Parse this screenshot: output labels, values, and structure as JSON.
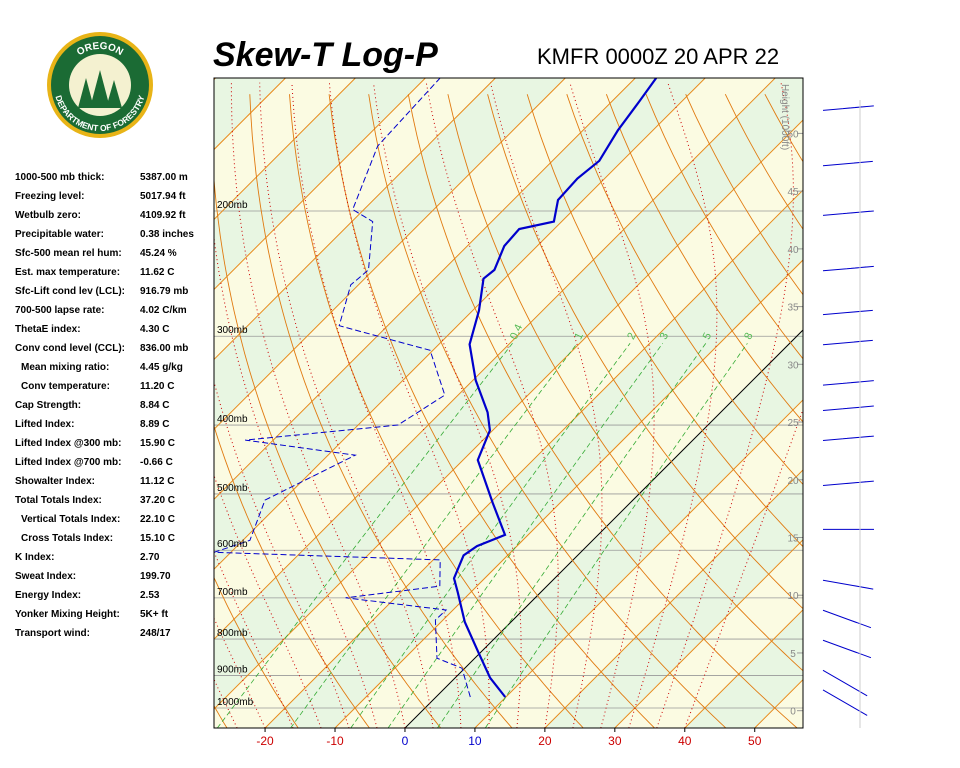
{
  "logo": {
    "top": "OREGON",
    "bottom": "DEPARTMENT OF FORESTRY"
  },
  "title": "Skew-T Log-P",
  "subtitle": "KMFR 0000Z 20 APR 22",
  "indices": [
    {
      "label": "1000-500 mb thick:",
      "value": "5387.00 m"
    },
    {
      "label": "Freezing level:",
      "value": "5017.94 ft"
    },
    {
      "label": "Wetbulb zero:",
      "value": "4109.92 ft"
    },
    {
      "label": "Precipitable water:",
      "value": "0.38 inches"
    },
    {
      "label": "Sfc-500 mean rel hum:",
      "value": "45.24 %"
    },
    {
      "label": "Est. max temperature:",
      "value": "11.62 C"
    },
    {
      "label": "Sfc-Lift cond lev (LCL):",
      "value": "916.79 mb"
    },
    {
      "label": "700-500 lapse rate:",
      "value": "4.02 C/km"
    },
    {
      "label": "ThetaE index:",
      "value": "4.30 C"
    },
    {
      "label": "Conv cond level (CCL):",
      "value": "836.00 mb"
    },
    {
      "label": "Mean mixing ratio:",
      "value": "4.45 g/kg",
      "indent": true
    },
    {
      "label": "Conv temperature:",
      "value": "11.20 C",
      "indent": true
    },
    {
      "label": "Cap Strength:",
      "value": "8.84 C"
    },
    {
      "label": "Lifted Index:",
      "value": "8.89 C"
    },
    {
      "label": "Lifted Index @300 mb:",
      "value": "15.90 C"
    },
    {
      "label": "Lifted Index @700 mb:",
      "value": "-0.66 C"
    },
    {
      "label": "Showalter Index:",
      "value": "11.12 C"
    },
    {
      "label": "Total Totals Index:",
      "value": "37.20 C"
    },
    {
      "label": "Vertical Totals Index:",
      "value": "22.10 C",
      "indent": true
    },
    {
      "label": "Cross Totals Index:",
      "value": "15.10 C",
      "indent": true
    },
    {
      "label": "K Index:",
      "value": "2.70"
    },
    {
      "label": "Sweat Index:",
      "value": "199.70"
    },
    {
      "label": "Energy Index:",
      "value": "2.53"
    },
    {
      "label": "Yonker Mixing Height:",
      "value": "5K+ ft"
    },
    {
      "label": "Transport wind:",
      "value": "248/17"
    }
  ],
  "chart_data": {
    "type": "skewt",
    "xlim": [
      -27.3,
      56.9
    ],
    "xticks": [
      -20,
      -10,
      0,
      10,
      20,
      30,
      40,
      50
    ],
    "xtick_colors": [
      "#cc0000",
      "#cc0000",
      "#0000cc",
      "#0000cc",
      "#cc0000",
      "#cc0000",
      "#cc0000",
      "#cc0000"
    ],
    "ylim": [
      1067,
      130
    ],
    "log_y": true,
    "yticks": [
      {
        "value": 200,
        "label": "200mb"
      },
      {
        "value": 300,
        "label": "300mb"
      },
      {
        "value": 400,
        "label": "400mb"
      },
      {
        "value": 500,
        "label": "500mb"
      },
      {
        "value": 600,
        "label": "600mb"
      },
      {
        "value": 700,
        "label": "700mb"
      },
      {
        "value": 800,
        "label": "800mb"
      },
      {
        "value": 900,
        "label": "900mb"
      },
      {
        "value": 1000,
        "label": "1000mb"
      }
    ],
    "height_label": "Height (1000ft)",
    "hlim": [
      -1.5,
      54.8
    ],
    "hticks": [
      0,
      5,
      10,
      15,
      20,
      25,
      30,
      35,
      40,
      45,
      50
    ],
    "mixing_ratios": [
      0.4,
      1,
      2,
      3,
      5,
      8
    ],
    "series": [
      {
        "color": "#0000cc",
        "dashed": false,
        "pressure": [
          965,
          907,
          834,
          757,
          687,
          657,
          610,
          592,
          571,
          515,
          448,
          407,
          384,
          346,
          308,
          276,
          249,
          242,
          224,
          212,
          207,
          193,
          180,
          170,
          154,
          140,
          130
        ],
        "values": [
          9.9,
          5.0,
          -0.4,
          -6.6,
          -11.9,
          -14.4,
          -16.3,
          -15.7,
          -13.3,
          -19.6,
          -27.9,
          -30.4,
          -33.3,
          -39.6,
          -45.6,
          -49.1,
          -53.0,
          -52.7,
          -54.7,
          -55.0,
          -51.1,
          -53.6,
          -53.9,
          -53.3,
          -55.0,
          -56.1,
          -57.0
        ]
      },
      {
        "color": "#0000cc",
        "dashed": true,
        "pressure": [
          965,
          879,
          851,
          752,
          728,
          700,
          674,
          619,
          604,
          581,
          510,
          441,
          420,
          400,
          363,
          314,
          290,
          254,
          242,
          207,
          199,
          162,
          130
        ],
        "values": [
          4.9,
          -0.4,
          -5.4,
          -11.1,
          -11.0,
          -27.1,
          -15.3,
          -19.0,
          -52.4,
          -49.0,
          -52.6,
          -46.1,
          -64.0,
          -44.3,
          -41.9,
          -50.4,
          -66.9,
          -71.1,
          -70.7,
          -77.0,
          -81.6,
          -87.1,
          -87.9
        ]
      }
    ],
    "wind": {
      "height": [
        1.8,
        3.5,
        6.1,
        8.7,
        11.3,
        15.7,
        19.5,
        23.4,
        26,
        28.2,
        31.7,
        34.3,
        38.1,
        42.9,
        47.2,
        52
      ],
      "direction": [
        300,
        300,
        290,
        290,
        280,
        270,
        265,
        265,
        265,
        265,
        265,
        265,
        265,
        265,
        265,
        265
      ],
      "speed": [
        15,
        20,
        25,
        25,
        20,
        15,
        40,
        45,
        45,
        45,
        50,
        65,
        40,
        45,
        50,
        45
      ],
      "color": "#0000cc"
    }
  }
}
